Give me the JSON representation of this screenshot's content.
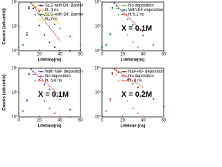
{
  "chart_data": [
    {
      "type": "line",
      "ylog": true,
      "xlabel": "Lifetime(ns)",
      "ylabel": "Counts (arb.units)",
      "x": [
        0,
        4,
        8,
        10,
        12,
        14,
        16,
        20,
        25,
        30,
        35,
        40,
        50,
        60
      ],
      "xlim": [
        0,
        60
      ],
      "xticks": [
        0,
        20,
        40,
        60
      ],
      "ylim": [
        1,
        10000
      ],
      "yticks": [
        {
          "value": 1,
          "label": "10⁰"
        },
        {
          "value": 100,
          "label": "10²"
        },
        {
          "value": 10000,
          "label": "10⁴"
        }
      ],
      "series": [
        {
          "name": "SLG with Dif. Barrier",
          "color": "#1a237e",
          "markers": true,
          "values": [
            2,
            3,
            20,
            3000,
            8000,
            3000,
            900,
            120,
            20,
            5,
            2,
            1,
            1,
            1
          ]
        },
        {
          "name": "fit, 4 ns",
          "color": "#e53935",
          "dashed": true,
          "values": [
            null,
            null,
            null,
            null,
            8000,
            4800,
            2900,
            1000,
            290,
            85,
            25,
            7,
            null,
            null
          ]
        },
        {
          "name": "SLG-with Dif. Barrier",
          "color": "#2e7d32",
          "markers": true,
          "values": [
            2,
            3,
            30,
            4000,
            9000,
            6000,
            4000,
            1700,
            800,
            350,
            150,
            70,
            15,
            3
          ]
        },
        {
          "name": "fit, 7ns",
          "color": "#ffca28",
          "dashed": true,
          "values": [
            null,
            null,
            null,
            null,
            9000,
            6600,
            4800,
            2700,
            1300,
            640,
            310,
            150,
            null,
            null
          ]
        }
      ]
    },
    {
      "type": "line",
      "ylog": true,
      "xlabel": "Lifetime(ns)",
      "annotation": "X = 0.1M",
      "x": [
        0,
        4,
        8,
        10,
        12,
        14,
        16,
        20,
        25,
        30,
        35,
        40,
        50,
        60
      ],
      "xlim": [
        0,
        60
      ],
      "xticks": [
        0,
        20,
        40,
        60
      ],
      "ylim": [
        1,
        10000
      ],
      "yticks": [
        {
          "value": 1,
          "label": "10⁰"
        },
        {
          "value": 100,
          "label": "10²"
        },
        {
          "value": 10000,
          "label": "10⁴"
        }
      ],
      "series": [
        {
          "name": "No deposition",
          "color": "#66bb6a",
          "markers": true,
          "values": [
            2,
            3,
            20,
            3000,
            8000,
            3000,
            900,
            120,
            20,
            5,
            2,
            1,
            1,
            1
          ]
        },
        {
          "name": "With KF deposition",
          "color": "#00695c",
          "markers": true,
          "values": [
            2,
            3,
            25,
            3500,
            8500,
            5000,
            3000,
            1000,
            380,
            140,
            50,
            18,
            3,
            1
          ]
        },
        {
          "name": "fit 5.2 ns",
          "color": "#e53935",
          "dashed": true,
          "values": [
            null,
            null,
            null,
            null,
            8500,
            5600,
            3700,
            1700,
            650,
            250,
            95,
            36,
            null,
            null
          ]
        }
      ]
    },
    {
      "type": "line",
      "ylog": true,
      "xlabel": "Lifetime(ns)",
      "ylabel": "Counts (arb.units)",
      "annotation": "X = 0.1M",
      "x": [
        0,
        4,
        8,
        10,
        12,
        14,
        16,
        20,
        25,
        30,
        35,
        40,
        50,
        60
      ],
      "xlim": [
        0,
        60
      ],
      "xticks": [
        0,
        20,
        40,
        60
      ],
      "ylim": [
        1,
        10000
      ],
      "yticks": [
        {
          "value": 1,
          "label": "10⁰"
        },
        {
          "value": 100,
          "label": "10²"
        },
        {
          "value": 10000,
          "label": "10⁴"
        }
      ],
      "series": [
        {
          "name": "With NaF deposition",
          "color": "#3949ab",
          "markers": true,
          "values": [
            2,
            3,
            25,
            3500,
            8500,
            5200,
            3200,
            1150,
            460,
            180,
            70,
            28,
            4,
            1
          ]
        },
        {
          "name": "No deposition",
          "color": "#ab47bc",
          "markers": true,
          "values": [
            2,
            3,
            20,
            3000,
            8000,
            3000,
            900,
            120,
            20,
            5,
            2,
            1,
            1,
            1
          ]
        },
        {
          "name": "fit, 5.6 ns",
          "color": "#e53935",
          "dashed": true,
          "values": [
            null,
            null,
            null,
            null,
            8500,
            5800,
            4000,
            1950,
            800,
            330,
            135,
            55,
            null,
            null
          ]
        }
      ]
    },
    {
      "type": "line",
      "ylog": true,
      "xlabel": "Lifetime (ns)",
      "annotation": "X = 0.2M",
      "x": [
        0,
        4,
        8,
        10,
        12,
        14,
        16,
        20,
        25,
        30,
        35,
        40,
        50,
        60
      ],
      "xlim": [
        0,
        60
      ],
      "xticks": [
        0,
        20,
        40,
        60
      ],
      "ylim": [
        1,
        10000
      ],
      "yticks": [
        {
          "value": 1,
          "label": "10⁰"
        },
        {
          "value": 100,
          "label": "10²"
        },
        {
          "value": 10000,
          "label": "10⁴"
        }
      ],
      "series": [
        {
          "name": "NaF+KF deposition",
          "color": "#7b1f1f",
          "markers": true,
          "values": [
            2,
            3,
            30,
            4000,
            9000,
            6400,
            4500,
            2300,
            1100,
            540,
            270,
            130,
            30,
            7
          ]
        },
        {
          "name": "No deposition",
          "color": "#e57373",
          "markers": true,
          "values": [
            2,
            3,
            20,
            3000,
            8000,
            3000,
            900,
            120,
            20,
            5,
            2,
            1,
            1,
            1
          ]
        },
        {
          "name": "fit, 8 ns",
          "color": "#e53935",
          "dashed": true,
          "values": [
            null,
            null,
            null,
            null,
            9000,
            7000,
            5500,
            3300,
            1760,
            940,
            500,
            270,
            null,
            null
          ]
        }
      ]
    }
  ]
}
